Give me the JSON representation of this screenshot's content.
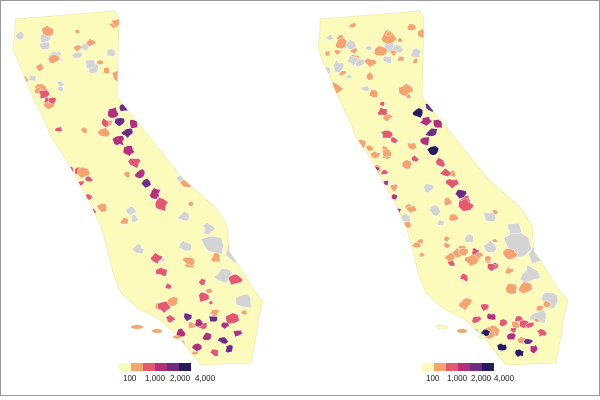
{
  "colors": {
    "background": "#ffffff",
    "land": "#fdfbbc",
    "no_data": "#d4d4d4",
    "outline": "#ffffff",
    "border": "#9a9a9a",
    "ramp": [
      "#fdfbbc",
      "#f6a46d",
      "#e4596d",
      "#b3317a",
      "#6e2c82",
      "#251a5a"
    ]
  },
  "maps": [
    {
      "name": "map-left",
      "legend": {
        "ticks": [
          "100",
          "1,000",
          "2,000",
          "4,000"
        ]
      }
    },
    {
      "name": "map-right",
      "legend": {
        "ticks": [
          "100",
          "1,000",
          "2,000",
          "4,000"
        ]
      }
    }
  ]
}
